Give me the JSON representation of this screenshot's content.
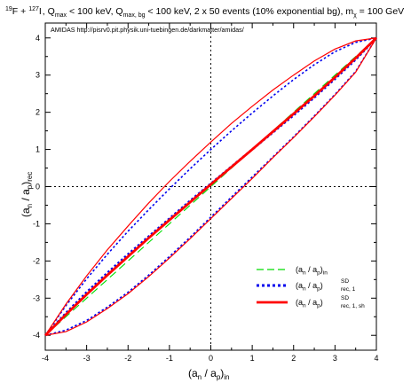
{
  "chart_data": {
    "type": "line",
    "title_parts": {
      "iso1_mass": "19",
      "iso1_symbol": "F",
      "plus": " + ",
      "iso2_mass": "127",
      "iso2_symbol": "I",
      "q1_sym": "Q",
      "q1_sub": "max",
      "q1_rest": " < 100 keV, ",
      "q2_sym": "Q",
      "q2_sub": "max, bg",
      "q2_rest": " < 100 keV, 2 x 50 events (10% exponential bg), ",
      "m_sym": "m",
      "m_sub": "χ",
      "m_rest": " = 100 GeV"
    },
    "annotation": "AMIDAS   http://pisrv0.pit.physik.uni-tuebingen.de/darkmatter/amidas/",
    "xlabel_parts": {
      "open": "(a",
      "n_sub": "n",
      "mid": " / a",
      "p_sub": "p",
      "close": ")",
      "suffix": "in"
    },
    "ylabel_parts": {
      "open": "(a",
      "n_sub": "n",
      "mid": " / a",
      "p_sub": "p",
      "close": ")",
      "suffix": "rec"
    },
    "xlim": [
      -4,
      4
    ],
    "ylim": [
      -4.4,
      4.4
    ],
    "xticks": [
      "-4",
      "-3",
      "-2",
      "-1",
      "0",
      "1",
      "2",
      "3",
      "4"
    ],
    "yticks": [
      "-4",
      "-3",
      "-2",
      "-1",
      "0",
      "1",
      "2",
      "3",
      "4"
    ],
    "x": [
      -4,
      -3.5,
      -3,
      -2.5,
      -2,
      -1.5,
      -1,
      -0.5,
      0,
      0.5,
      1,
      1.5,
      2,
      2.5,
      3,
      3.5,
      4
    ],
    "series": [
      {
        "id": "in",
        "legend": {
          "open": "(a",
          "n_sub": "n",
          "mid": " / a",
          "p_sub": "p",
          "close": ")",
          "sub": "in",
          "sup": ""
        },
        "color": "#00dd00",
        "dash": "long",
        "values": [
          -4,
          -3.5,
          -3,
          -2.5,
          -2,
          -1.5,
          -1,
          -0.5,
          0,
          0.5,
          1,
          1.5,
          2,
          2.5,
          3,
          3.5,
          4
        ]
      },
      {
        "id": "rec1",
        "legend": {
          "open": "(a",
          "n_sub": "n",
          "mid": " / a",
          "p_sub": "p",
          "close": ")",
          "sub": "rec, 1",
          "sup": "SD"
        },
        "color": "#0000ee",
        "dash": "dotted",
        "values": [
          -4,
          -3.4,
          -2.84,
          -2.32,
          -1.82,
          -1.34,
          -0.86,
          -0.38,
          0.08,
          0.54,
          1.0,
          1.46,
          1.92,
          2.4,
          2.9,
          3.42,
          4
        ],
        "upper": [
          -4,
          -3.2,
          -2.48,
          -1.82,
          -1.2,
          -0.62,
          -0.06,
          0.48,
          1.0,
          1.5,
          1.98,
          2.44,
          2.88,
          3.28,
          3.63,
          3.88,
          4
        ],
        "lower": [
          -4,
          -3.86,
          -3.6,
          -3.24,
          -2.84,
          -2.38,
          -1.88,
          -1.36,
          -0.82,
          -0.28,
          0.26,
          0.8,
          1.34,
          1.9,
          2.48,
          3.1,
          4
        ]
      },
      {
        "id": "rec1sh",
        "legend": {
          "open": "(a",
          "n_sub": "n",
          "mid": " / a",
          "p_sub": "p",
          "close": ")",
          "sub": "rec, 1, sh",
          "sup": "SD"
        },
        "color": "#ff0000",
        "dash": "solid",
        "values": [
          -4,
          -3.44,
          -2.9,
          -2.38,
          -1.88,
          -1.38,
          -0.9,
          -0.42,
          0.06,
          0.53,
          1.0,
          1.48,
          1.96,
          2.44,
          2.94,
          3.46,
          4
        ],
        "upper": [
          -4,
          -3.16,
          -2.4,
          -1.7,
          -1.06,
          -0.44,
          0.14,
          0.68,
          1.2,
          1.7,
          2.16,
          2.6,
          3.0,
          3.38,
          3.7,
          3.92,
          4
        ],
        "lower": [
          -4,
          -3.9,
          -3.64,
          -3.28,
          -2.88,
          -2.42,
          -1.92,
          -1.4,
          -0.86,
          -0.32,
          0.22,
          0.78,
          1.32,
          1.88,
          2.46,
          3.08,
          4
        ]
      }
    ],
    "reference_lines": {
      "x0": true,
      "y0": true,
      "style": "dotted"
    },
    "legend_position": "bottom-right",
    "grid": false
  }
}
